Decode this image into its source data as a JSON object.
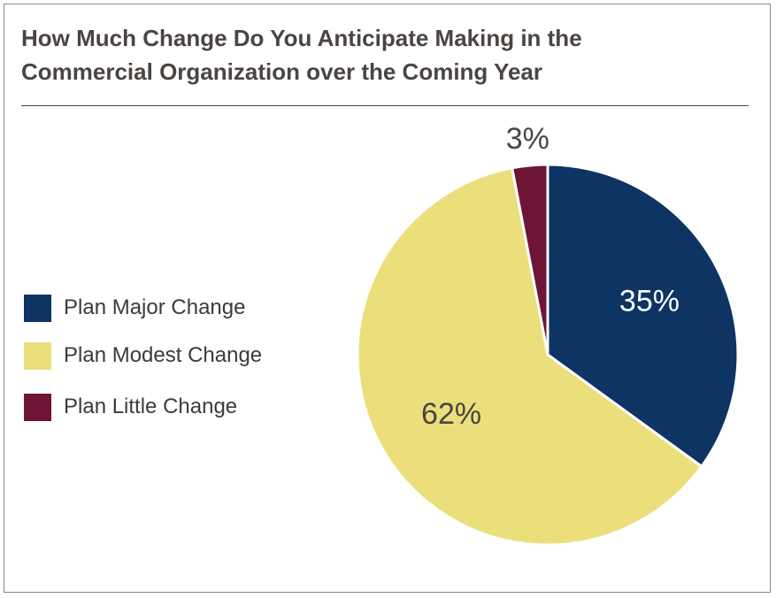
{
  "title_lines": [
    "How Much Change Do You Anticipate Making in the",
    "Commercial Organization over the Coming Year"
  ],
  "colors": {
    "major": "#0e3464",
    "modest": "#ebdf7b",
    "little": "#6e1437",
    "title": "#4a4542",
    "label_dark": "#4a4542",
    "label_light": "#ffffff"
  },
  "chart_data": {
    "type": "pie",
    "title": "How Much Change Do You Anticipate Making in the Commercial Organization over the Coming Year",
    "legend_position": "left",
    "slices": [
      {
        "name": "Plan Major Change",
        "value": 35,
        "label": "35%",
        "color": "#0e3464",
        "label_color": "#ffffff",
        "label_outside": false
      },
      {
        "name": "Plan Modest Change",
        "value": 62,
        "label": "62%",
        "color": "#ebdf7b",
        "label_color": "#4a4542",
        "label_outside": false
      },
      {
        "name": "Plan Little Change",
        "value": 3,
        "label": "3%",
        "color": "#6e1437",
        "label_color": "#4a4542",
        "label_outside": true
      }
    ]
  }
}
